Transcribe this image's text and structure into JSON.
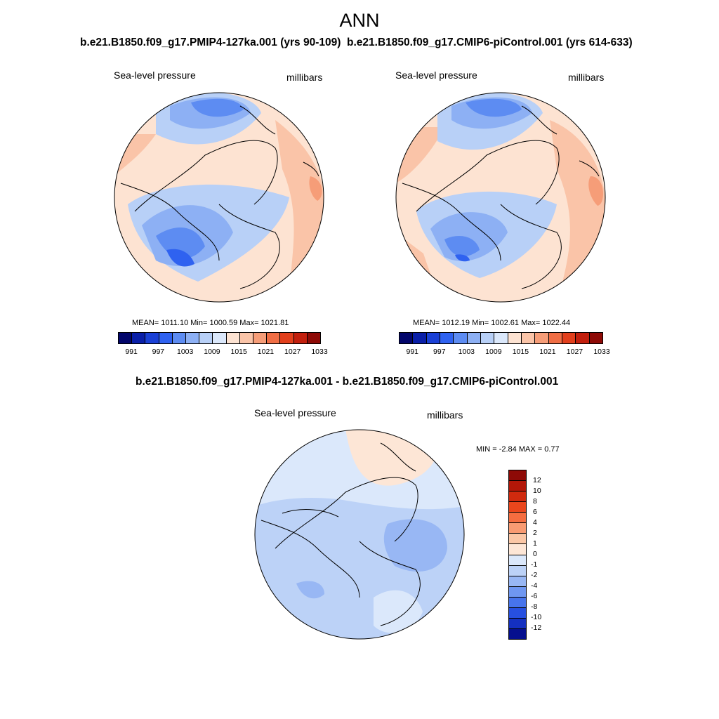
{
  "title": "ANN",
  "panels": [
    {
      "title": "b.e21.B1850.f09_g17.PMIP4-127ka.001 (yrs 90-109)",
      "var_label": "Sea-level pressure",
      "units_label": "millibars",
      "stats": "MEAN= 1011.10   Min= 1000.59   Max= 1021.81",
      "colorbar_ticks": [
        "991",
        "997",
        "1003",
        "1009",
        "1015",
        "1021",
        "1027",
        "1033"
      ]
    },
    {
      "title": "b.e21.B1850.f09_g17.CMIP6-piControl.001 (yrs 614-633)",
      "var_label": "Sea-level pressure",
      "units_label": "millibars",
      "stats": "MEAN= 1012.19   Min= 1002.61   Max= 1022.44",
      "colorbar_ticks": [
        "991",
        "997",
        "1003",
        "1009",
        "1015",
        "1021",
        "1027",
        "1033"
      ]
    },
    {
      "title": "b.e21.B1850.f09_g17.PMIP4-127ka.001 - b.e21.B1850.f09_g17.CMIP6-piControl.001",
      "var_label": "Sea-level pressure",
      "units_label": "millibars",
      "stats": "MIN =  -2.84 MAX =   0.77",
      "colorbar_ticks": [
        "12",
        "10",
        "8",
        "6",
        "4",
        "2",
        "1",
        "0",
        "-1",
        "-2",
        "-4",
        "-6",
        "-8",
        "-10",
        "-12"
      ]
    }
  ],
  "colors": {
    "abs_scale": [
      "#03066b",
      "#0a1fa8",
      "#1a40d6",
      "#2f62f0",
      "#5d8cf2",
      "#8db0f4",
      "#b8d0f7",
      "#dbe8fb",
      "#fde3d2",
      "#fac4a8",
      "#f69d78",
      "#f06e45",
      "#e23f1c",
      "#c21f0d",
      "#8e0a06"
    ],
    "diff_scale": [
      "#8e0a06",
      "#b31708",
      "#d02a0e",
      "#ea461c",
      "#f56d40",
      "#f99b72",
      "#fbc7a6",
      "#fde6d6",
      "#dbe8fb",
      "#bcd2f7",
      "#98b7f4",
      "#6f97f1",
      "#4774ec",
      "#2750e0",
      "#1430c0",
      "#050f8e"
    ]
  }
}
